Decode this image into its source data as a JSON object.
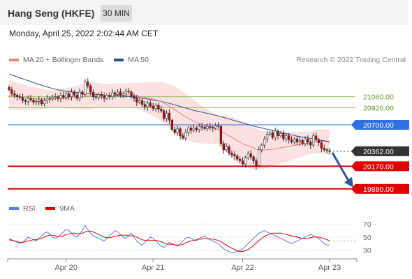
{
  "header": {
    "title": "Hang Seng (HKFE)",
    "timeframe": "30 MIN"
  },
  "timestamp": "Monday, April 25, 2022 2:02:44 AM CET",
  "legend": {
    "ma20_label": "MA 20 + Bollinger Bands",
    "ma20_color": "#f08080",
    "ma50_label": "MA 50",
    "ma50_color": "#2a4f8f",
    "credit": "Research © 2022 Trading Central"
  },
  "rsi_legend": {
    "rsi_label": "RSI",
    "rsi_color": "#5b7fe0",
    "ma9_label": "9MA",
    "ma9_color": "#e00000"
  },
  "colors": {
    "up": "#ffffff",
    "down": "#c00000",
    "wick": "#333333",
    "band": "#fcd8d8",
    "arrow": "#2a5a9a"
  },
  "chart_data": [
    {
      "type": "candlestick",
      "ylim": [
        19780,
        21450
      ],
      "x_ticks": [
        "Apr 20",
        "Apr 21",
        "Apr 22",
        "Apr 23"
      ],
      "x_tick_bar_index": [
        21,
        53,
        86,
        118
      ],
      "levels": [
        {
          "value": 21060,
          "label": "21060.00",
          "role": "target",
          "color": "#8fc060"
        },
        {
          "value": 20920,
          "label": "20920.00",
          "role": "target",
          "color": "#8fc060"
        },
        {
          "value": 20700,
          "label": "20700.00",
          "role": "pivot",
          "color": "#2f6fe0"
        },
        {
          "value": 20362,
          "label": "20362.00",
          "role": "last",
          "color": "#333333"
        },
        {
          "value": 20170,
          "label": "20170.00",
          "role": "support",
          "color": "#e00000"
        },
        {
          "value": 19880,
          "label": "19880.00",
          "role": "support",
          "color": "#e00000"
        }
      ],
      "forecast_arrow": {
        "from": 20362,
        "to": 19880
      },
      "closes": [
        21150,
        21100,
        21080,
        21060,
        21050,
        21010,
        21000,
        21040,
        21020,
        20990,
        21000,
        21020,
        20970,
        21010,
        21040,
        21030,
        21050,
        21060,
        21040,
        21080,
        21050,
        21100,
        21060,
        21120,
        21080,
        21040,
        21120,
        21090,
        21250,
        21200,
        21120,
        21060,
        21050,
        21090,
        21070,
        21040,
        21080,
        21060,
        21110,
        21090,
        21120,
        21080,
        21100,
        21130,
        21120,
        21070,
        21040,
        20990,
        21010,
        20960,
        20930,
        20980,
        20940,
        20910,
        20950,
        20900,
        20880,
        20780,
        20850,
        20760,
        20640,
        20600,
        20650,
        20560,
        20530,
        20600,
        20660,
        20630,
        20660,
        20640,
        20680,
        20670,
        20650,
        20680,
        20670,
        20660,
        20690,
        20680,
        20460,
        20380,
        20420,
        20340,
        20320,
        20300,
        20260,
        20240,
        20200,
        20280,
        20330,
        20290,
        20240,
        20180,
        20380,
        20440,
        20520,
        20580,
        20600,
        20540,
        20620,
        20560,
        20590,
        20520,
        20560,
        20510,
        20480,
        20520,
        20480,
        20500,
        20460,
        20520,
        20480,
        20440,
        20560,
        20510,
        20470,
        20400,
        20380,
        20370,
        20362
      ],
      "ma20": [
        21080,
        21075,
        21070,
        21065,
        21060,
        21055,
        21050,
        21045,
        21040,
        21038,
        21036,
        21034,
        21032,
        21030,
        21030,
        21030,
        21031,
        21032,
        21034,
        21036,
        21038,
        21040,
        21042,
        21045,
        21048,
        21052,
        21056,
        21060,
        21066,
        21070,
        21074,
        21076,
        21076,
        21076,
        21076,
        21076,
        21076,
        21076,
        21078,
        21080,
        21080,
        21080,
        21080,
        21082,
        21084,
        21082,
        21078,
        21072,
        21066,
        21060,
        21052,
        21046,
        21038,
        21030,
        21020,
        21010,
        21000,
        20980,
        20960,
        20940,
        20916,
        20892,
        20868,
        20846,
        20826,
        20806,
        20786,
        20766,
        20746,
        20730,
        20716,
        20702,
        20688,
        20676,
        20666,
        20656,
        20648,
        20640,
        20620,
        20600,
        20580,
        20560,
        20540,
        20520,
        20500,
        20480,
        20460,
        20444,
        20430,
        20416,
        20402,
        20388,
        20380,
        20378,
        20378,
        20380,
        20384,
        20388,
        20394,
        20400,
        20406,
        20412,
        20418,
        20424,
        20430,
        20436,
        20442,
        20448,
        20454,
        20460,
        20466,
        20470,
        20478,
        20484,
        20488,
        20488,
        20486,
        20482,
        20476
      ],
      "bb_width": [
        180,
        180,
        180,
        175,
        170,
        165,
        160,
        155,
        150,
        145,
        140,
        135,
        130,
        125,
        120,
        120,
        120,
        120,
        120,
        120,
        125,
        130,
        135,
        140,
        145,
        150,
        155,
        160,
        170,
        175,
        175,
        170,
        165,
        160,
        155,
        150,
        150,
        150,
        150,
        150,
        150,
        150,
        150,
        150,
        150,
        155,
        160,
        165,
        170,
        180,
        190,
        200,
        210,
        220,
        230,
        240,
        250,
        260,
        270,
        280,
        290,
        295,
        300,
        300,
        300,
        295,
        290,
        280,
        270,
        260,
        250,
        240,
        230,
        220,
        210,
        200,
        190,
        180,
        200,
        220,
        240,
        250,
        260,
        270,
        275,
        280,
        285,
        285,
        280,
        275,
        270,
        270,
        260,
        250,
        240,
        230,
        220,
        215,
        210,
        205,
        200,
        195,
        190,
        185,
        180,
        175,
        170,
        165,
        160,
        155,
        150,
        145,
        145,
        150,
        155,
        160,
        160,
        160,
        160
      ],
      "ma50": [
        21350,
        21338,
        21326,
        21314,
        21302,
        21290,
        21278,
        21266,
        21254,
        21242,
        21230,
        21218,
        21206,
        21196,
        21186,
        21176,
        21166,
        21158,
        21150,
        21142,
        21136,
        21130,
        21126,
        21122,
        21118,
        21114,
        21110,
        21106,
        21102,
        21100,
        21096,
        21092,
        21090,
        21086,
        21082,
        21080,
        21078,
        21076,
        21074,
        21072,
        21070,
        21068,
        21066,
        21064,
        21062,
        21060,
        21056,
        21052,
        21048,
        21042,
        21036,
        21030,
        21024,
        21018,
        21012,
        21006,
        21000,
        20992,
        20984,
        20976,
        20966,
        20956,
        20946,
        20936,
        20926,
        20916,
        20906,
        20896,
        20886,
        20878,
        20870,
        20862,
        20854,
        20846,
        20838,
        20830,
        20822,
        20814,
        20804,
        20794,
        20784,
        20774,
        20764,
        20754,
        20744,
        20734,
        20724,
        20714,
        20704,
        20694,
        20684,
        20676,
        20668,
        20660,
        20652,
        20644,
        20636,
        20628,
        20620,
        20612,
        20604,
        20596,
        20588,
        20580,
        20572,
        20564,
        20556,
        20550,
        20544,
        20538,
        20532,
        20526,
        20520,
        20514,
        20508,
        20502,
        20496,
        20490,
        20484
      ]
    },
    {
      "type": "line",
      "title": "RSI",
      "ylim": [
        20,
        82
      ],
      "y_ticks": [
        70,
        50,
        30
      ],
      "series": [
        {
          "name": "RSI",
          "values": [
            48,
            46,
            44,
            42,
            40,
            42,
            46,
            50,
            48,
            46,
            44,
            48,
            52,
            56,
            58,
            55,
            50,
            48,
            50,
            54,
            58,
            62,
            60,
            56,
            52,
            50,
            55,
            60,
            68,
            62,
            56,
            52,
            50,
            48,
            46,
            44,
            48,
            52,
            56,
            60,
            58,
            54,
            50,
            48,
            52,
            56,
            50,
            44,
            40,
            38,
            42,
            46,
            50,
            48,
            44,
            40,
            36,
            34,
            38,
            42,
            40,
            38,
            36,
            40,
            44,
            48,
            50,
            48,
            46,
            44,
            48,
            50,
            52,
            48,
            46,
            44,
            42,
            40,
            36,
            32,
            30,
            28,
            26,
            27,
            28,
            30,
            32,
            36,
            40,
            44,
            48,
            52,
            56,
            58,
            60,
            58,
            56,
            54,
            52,
            50,
            48,
            46,
            44,
            42,
            40,
            42,
            44,
            46,
            48,
            50,
            52,
            54,
            52,
            50,
            48,
            44,
            40,
            38,
            38
          ]
        },
        {
          "name": "9MA",
          "values": [
            46,
            45,
            44,
            43,
            42,
            42,
            43,
            44,
            45,
            46,
            46,
            47,
            48,
            50,
            52,
            53,
            53,
            52,
            51,
            51,
            52,
            54,
            55,
            56,
            56,
            55,
            55,
            56,
            58,
            59,
            59,
            58,
            56,
            54,
            52,
            50,
            49,
            49,
            50,
            51,
            52,
            53,
            53,
            53,
            52,
            52,
            52,
            50,
            48,
            46,
            45,
            45,
            45,
            45,
            45,
            44,
            43,
            41,
            40,
            39,
            39,
            38,
            38,
            38,
            39,
            41,
            43,
            44,
            45,
            46,
            47,
            47,
            48,
            48,
            47,
            47,
            46,
            45,
            43,
            40,
            38,
            35,
            33,
            31,
            29,
            28,
            28,
            29,
            31,
            34,
            37,
            41,
            45,
            48,
            51,
            53,
            55,
            56,
            56,
            56,
            56,
            55,
            54,
            53,
            52,
            51,
            50,
            49,
            48,
            48,
            48,
            49,
            50,
            50,
            50,
            49,
            48,
            46,
            44
          ]
        }
      ]
    }
  ]
}
